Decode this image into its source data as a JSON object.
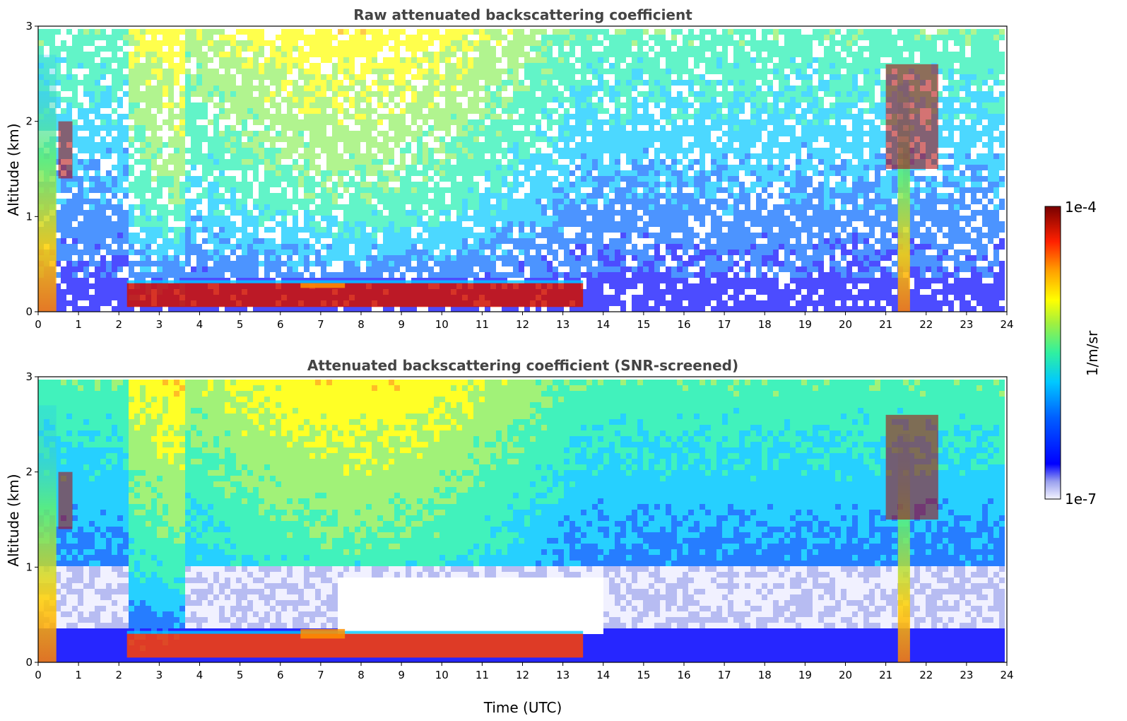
{
  "chart_data": [
    {
      "type": "heatmap",
      "title": "Raw attenuated backscattering coefficient",
      "xlabel": "",
      "ylabel": "Altitude (km)",
      "xlim": [
        0,
        24
      ],
      "ylim": [
        0,
        3
      ],
      "xticks": [
        0,
        1,
        2,
        3,
        4,
        5,
        6,
        7,
        8,
        9,
        10,
        11,
        12,
        13,
        14,
        15,
        16,
        17,
        18,
        19,
        20,
        21,
        22,
        23,
        24
      ],
      "yticks": [
        0,
        1,
        2,
        3
      ],
      "screened": false,
      "features": [
        {
          "name": "aerosol layer",
          "x": [
            2.2,
            13.5
          ],
          "y": [
            0.05,
            0.3
          ]
        },
        {
          "name": "elevated layer",
          "x": [
            6.5,
            7.6
          ],
          "y": [
            0.25,
            0.3
          ]
        },
        {
          "name": "precipitation",
          "x": [
            0,
            0.45
          ],
          "y": [
            0,
            2.7
          ]
        },
        {
          "name": "cloud",
          "x": [
            0.5,
            0.85
          ],
          "y": [
            1.4,
            2.0
          ]
        },
        {
          "name": "precipitation",
          "x": [
            21.3,
            21.6
          ],
          "y": [
            0,
            2.4
          ]
        },
        {
          "name": "cloud",
          "x": [
            21.0,
            22.3
          ],
          "y": [
            1.5,
            2.6
          ]
        }
      ]
    },
    {
      "type": "heatmap",
      "title": "Attenuated backscattering coefficient (SNR-screened)",
      "xlabel": "Time (UTC)",
      "ylabel": "Altitude (km)",
      "xlim": [
        0,
        24
      ],
      "ylim": [
        0,
        3
      ],
      "xticks": [
        0,
        1,
        2,
        3,
        4,
        5,
        6,
        7,
        8,
        9,
        10,
        11,
        12,
        13,
        14,
        15,
        16,
        17,
        18,
        19,
        20,
        21,
        22,
        23,
        24
      ],
      "yticks": [
        0,
        1,
        2,
        3
      ],
      "screened": true,
      "features": [
        {
          "name": "aerosol layer",
          "x": [
            2.2,
            13.5
          ],
          "y": [
            0.05,
            0.3
          ]
        },
        {
          "name": "elevated layer",
          "x": [
            6.5,
            7.6
          ],
          "y": [
            0.25,
            0.35
          ]
        },
        {
          "name": "precipitation",
          "x": [
            0,
            0.45
          ],
          "y": [
            0,
            2.7
          ]
        },
        {
          "name": "cloud",
          "x": [
            0.5,
            0.85
          ],
          "y": [
            1.4,
            2.0
          ]
        },
        {
          "name": "precipitation",
          "x": [
            21.3,
            21.6
          ],
          "y": [
            0,
            2.4
          ]
        },
        {
          "name": "cloud",
          "x": [
            21.0,
            22.3
          ],
          "y": [
            1.5,
            2.6
          ]
        }
      ]
    }
  ],
  "colorbar": {
    "label": "1/m/sr",
    "min_label": "1e-7",
    "max_label": "1e-4",
    "scale": "log",
    "colormap": [
      "#eeeeff",
      "#aab0f0",
      "#0000ff",
      "#0066ff",
      "#00c8ff",
      "#20f0b0",
      "#90f060",
      "#ffff00",
      "#ffb000",
      "#ff4000",
      "#c00000",
      "#7a0000"
    ]
  }
}
